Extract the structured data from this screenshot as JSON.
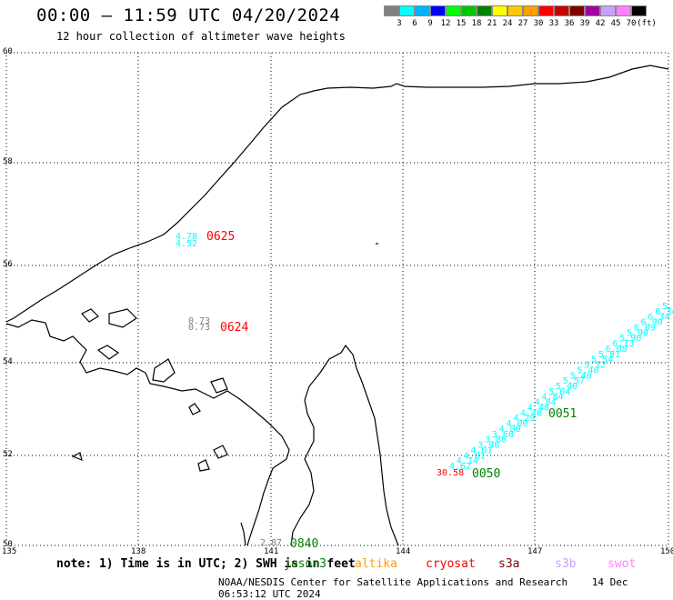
{
  "header": {
    "title": "00:00 – 11:59 UTC 04/20/2024",
    "subtitle": "12 hour collection of altimeter wave heights"
  },
  "color_scale": {
    "colors": [
      "#808080",
      "#00ffff",
      "#00b2ff",
      "#0000ff",
      "#00ff00",
      "#00c800",
      "#008000",
      "#ffff00",
      "#ffc800",
      "#ffa000",
      "#ff0000",
      "#c80000",
      "#800000",
      "#a000a0",
      "#c8a0ff",
      "#ff80ff",
      "#000000"
    ],
    "labels": [
      "3",
      "6",
      "9",
      "12",
      "15",
      "18",
      "21",
      "24",
      "27",
      "30",
      "33",
      "36",
      "39",
      "42",
      "45",
      "70",
      "(ft)"
    ]
  },
  "axes": {
    "lat_labels": [
      "60",
      "58",
      "56",
      "54",
      "52",
      "50"
    ],
    "lon_labels": [
      "135",
      "138",
      "141",
      "144",
      "147",
      "150"
    ]
  },
  "annotations": {
    "track_0625": {
      "values": [
        "4.78",
        "4.52"
      ],
      "time": "0625",
      "value_color": "#00ffff",
      "time_color": "#ff0000"
    },
    "track_0624": {
      "values": [
        "0.73",
        "0.73"
      ],
      "time": "0624",
      "value_color": "#808080",
      "time_color": "#ff0000"
    },
    "track_0840": {
      "values": [
        "2.87"
      ],
      "time": "0840",
      "value_color": "#808080",
      "time_color": "#008000"
    },
    "track_0050": {
      "values": [
        "30.58"
      ],
      "time": "0050",
      "value_color": "#ff0000",
      "time_color": "#008000"
    },
    "track_0051": {
      "time": "0051",
      "time_color": "#008000"
    },
    "diagonal_values": [
      "4.62",
      "4.14",
      "4.01",
      "4.01",
      "3.98",
      "3.86",
      "3.68",
      "4.00",
      "4.00",
      "4.29",
      "4.48",
      "4.48",
      "4.84",
      "4.84",
      "5.04",
      "5.40",
      "5.57",
      "5.40",
      "5.40",
      "5.12",
      "5.54",
      "5.81",
      "6.08",
      "6.13",
      "5.90",
      "5.90",
      "6.09",
      "6.90",
      "6.34",
      "6.34",
      "5.90"
    ],
    "diagonal_color": "#00ffff"
  },
  "footer": {
    "note": "note: 1) Time is in UTC; 2) SWH is in feet",
    "legend": [
      {
        "name": "jason3",
        "color": "#008000"
      },
      {
        "name": "altika",
        "color": "#ffa000"
      },
      {
        "name": "cryosat",
        "color": "#ff0000"
      },
      {
        "name": "s3a",
        "color": "#800000"
      },
      {
        "name": "s3b",
        "color": "#c8a0ff"
      },
      {
        "name": "swot",
        "color": "#ff80ff"
      }
    ],
    "credit": "NOAA/NESDIS Center for Satellite Applications and Research",
    "timestamp": "14 Dec 06:53:12 UTC 2024"
  }
}
